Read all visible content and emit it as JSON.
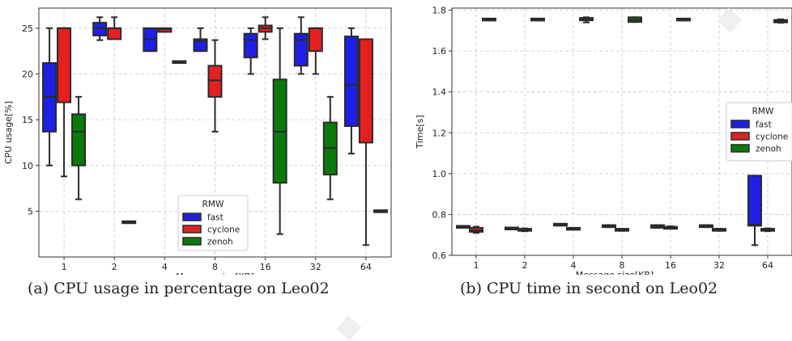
{
  "chart_data": [
    {
      "type": "box",
      "title": "",
      "xlabel": "Message size[KB]",
      "ylabel": "CPU usage[%]",
      "categories": [
        "1",
        "2",
        "4",
        "8",
        "16",
        "32",
        "64"
      ],
      "yticks": [
        5,
        10,
        15,
        20,
        25
      ],
      "ylim": [
        0,
        27.2
      ],
      "grid": true,
      "legend": {
        "title": "RMW",
        "position": "bottom-center"
      },
      "series": [
        {
          "name": "fast",
          "color": "#1f1fe6",
          "boxes": [
            {
              "min": 10,
              "q1": 13.7,
              "median": 17.5,
              "q3": 21.2,
              "max": 25
            },
            {
              "min": 23.7,
              "q1": 24.2,
              "median": 25,
              "q3": 25.6,
              "max": 26.2
            },
            {
              "min": 22.5,
              "q1": 22.5,
              "median": 23.8,
              "q3": 25,
              "max": 25
            },
            {
              "min": 22.5,
              "q1": 22.5,
              "median": 23.6,
              "q3": 23.8,
              "max": 25
            },
            {
              "min": 20,
              "q1": 21.8,
              "median": 23.7,
              "q3": 24.4,
              "max": 25
            },
            {
              "min": 20,
              "q1": 20.9,
              "median": 23.7,
              "q3": 24.4,
              "max": 26.2
            },
            {
              "min": 11.3,
              "q1": 14.3,
              "median": 18.8,
              "q3": 24.1,
              "max": 25
            }
          ]
        },
        {
          "name": "cyclone",
          "color": "#e62020",
          "boxes": [
            {
              "min": 8.8,
              "q1": 16.9,
              "median": 25,
              "q3": 25,
              "max": 25
            },
            {
              "min": 23.8,
              "q1": 23.8,
              "median": 25,
              "q3": 25,
              "max": 26.2
            },
            {
              "min": 24.6,
              "q1": 24.6,
              "median": 24.9,
              "q3": 25,
              "max": 25
            },
            {
              "min": 13.7,
              "q1": 17.5,
              "median": 19.3,
              "q3": 20.9,
              "max": 23.7
            },
            {
              "min": 23.8,
              "q1": 24.6,
              "median": 25,
              "q3": 25.3,
              "max": 26.2
            },
            {
              "min": 20,
              "q1": 22.5,
              "median": 25,
              "q3": 25,
              "max": 25
            },
            {
              "min": 1.3,
              "q1": 12.5,
              "median": 23.8,
              "q3": 23.8,
              "max": 23.8
            }
          ]
        },
        {
          "name": "zenoh",
          "color": "#0b7a0b",
          "boxes": [
            {
              "min": 6.3,
              "q1": 10,
              "median": 13.7,
              "q3": 15.6,
              "max": 17.5
            },
            {
              "min": 3.8,
              "q1": 3.8,
              "median": 3.8,
              "q3": 3.8,
              "max": 3.8
            },
            {
              "min": 21.3,
              "q1": 21.3,
              "median": 21.3,
              "q3": 21.3,
              "max": 21.3
            },
            null,
            {
              "min": 2.5,
              "q1": 8.1,
              "median": 13.7,
              "q3": 19.4,
              "max": 25
            },
            {
              "min": 6.3,
              "q1": 9,
              "median": 11.9,
              "q3": 14.7,
              "max": 17.5
            },
            {
              "min": 5,
              "q1": 5,
              "median": 5,
              "q3": 5,
              "max": 5
            }
          ]
        }
      ]
    },
    {
      "type": "box",
      "title": "",
      "xlabel": "Message size[KB]",
      "ylabel": "Time[s]",
      "categories": [
        "1",
        "2",
        "4",
        "8",
        "16",
        "32",
        "64"
      ],
      "yticks": [
        "0.6",
        "0.8",
        "1.0",
        "1.2",
        "1.4",
        "1.6",
        "1.8"
      ],
      "ylim": [
        0.6,
        1.81
      ],
      "grid": true,
      "legend": {
        "title": "RMW",
        "position": "center-right"
      },
      "series": [
        {
          "name": "fast",
          "color": "#1f1fe6",
          "boxes": [
            {
              "min": 0.737,
              "q1": 0.737,
              "median": 0.74,
              "q3": 0.742,
              "max": 0.742
            },
            {
              "min": 0.73,
              "q1": 0.73,
              "median": 0.732,
              "q3": 0.733,
              "max": 0.733
            },
            {
              "min": 0.748,
              "q1": 0.748,
              "median": 0.75,
              "q3": 0.752,
              "max": 0.752
            },
            {
              "min": 0.738,
              "q1": 0.738,
              "median": 0.743,
              "q3": 0.748,
              "max": 0.748
            },
            {
              "min": 0.735,
              "q1": 0.735,
              "median": 0.742,
              "q3": 0.748,
              "max": 0.748
            },
            {
              "min": 0.738,
              "q1": 0.738,
              "median": 0.743,
              "q3": 0.748,
              "max": 0.748
            },
            {
              "min": 0.65,
              "q1": 0.745,
              "median": 0.75,
              "q3": 0.99,
              "max": 0.99
            }
          ]
        },
        {
          "name": "cyclone",
          "color": "#e62020",
          "boxes": [
            {
              "min": 0.71,
              "q1": 0.715,
              "median": 0.722,
              "q3": 0.735,
              "max": 0.74
            },
            {
              "min": 0.718,
              "q1": 0.72,
              "median": 0.725,
              "q3": 0.73,
              "max": 0.732
            },
            {
              "min": 0.728,
              "q1": 0.728,
              "median": 0.73,
              "q3": 0.732,
              "max": 0.732
            },
            {
              "min": 0.72,
              "q1": 0.72,
              "median": 0.725,
              "q3": 0.73,
              "max": 0.73
            },
            {
              "min": 0.73,
              "q1": 0.73,
              "median": 0.735,
              "q3": 0.74,
              "max": 0.742
            },
            {
              "min": 0.72,
              "q1": 0.72,
              "median": 0.725,
              "q3": 0.73,
              "max": 0.73
            },
            {
              "min": 0.718,
              "q1": 0.72,
              "median": 0.725,
              "q3": 0.73,
              "max": 0.732
            }
          ]
        },
        {
          "name": "zenoh",
          "color": "#0b7a0b",
          "boxes": [
            {
              "min": 1.75,
              "q1": 1.752,
              "median": 1.754,
              "q3": 1.756,
              "max": 1.758
            },
            {
              "min": 1.75,
              "q1": 1.752,
              "median": 1.754,
              "q3": 1.756,
              "max": 1.758
            },
            {
              "min": 1.74,
              "q1": 1.75,
              "median": 1.755,
              "q3": 1.762,
              "max": 1.765
            },
            {
              "min": 1.742,
              "q1": 1.742,
              "median": 1.752,
              "q3": 1.765,
              "max": 1.765
            },
            {
              "min": 1.75,
              "q1": 1.752,
              "median": 1.754,
              "q3": 1.756,
              "max": 1.758
            },
            {
              "min": 1.75,
              "q1": 1.752,
              "median": 1.754,
              "q3": 1.756,
              "max": 1.758
            },
            {
              "min": 1.738,
              "q1": 1.74,
              "median": 1.746,
              "q3": 1.752,
              "max": 1.755
            }
          ]
        }
      ]
    }
  ],
  "captions": {
    "a": "(a) CPU usage in percentage on Leo02",
    "b": "(b) CPU time in second on Leo02"
  }
}
